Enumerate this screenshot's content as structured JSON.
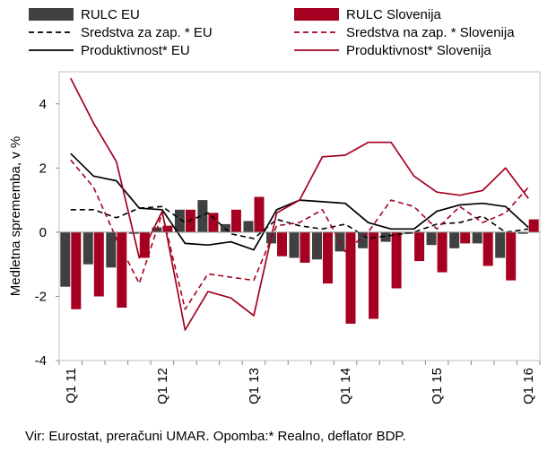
{
  "chart_data": {
    "type": "bar+line",
    "ylabel": "Medletna sprememba, v %",
    "ylim": [
      -4,
      5
    ],
    "yticks": [
      4,
      2,
      0,
      -2,
      -4
    ],
    "grid": false,
    "legend_position": "top",
    "quarters": [
      "Q1 11",
      "Q2 11",
      "Q3 11",
      "Q4 11",
      "Q1 12",
      "Q2 12",
      "Q3 12",
      "Q4 12",
      "Q1 13",
      "Q2 13",
      "Q3 13",
      "Q4 13",
      "Q1 14",
      "Q2 14",
      "Q3 14",
      "Q4 14",
      "Q1 15",
      "Q2 15",
      "Q3 15",
      "Q4 15",
      "Q1 16"
    ],
    "xtick_labels": [
      {
        "label": "Q1 11",
        "index": 0
      },
      {
        "label": "Q1 12",
        "index": 4
      },
      {
        "label": "Q1 13",
        "index": 8
      },
      {
        "label": "Q1 14",
        "index": 12
      },
      {
        "label": "Q1 15",
        "index": 16
      },
      {
        "label": "Q1 16",
        "index": 20
      }
    ],
    "series": [
      {
        "name": "RULC EU",
        "kind": "bar",
        "color": "#404040",
        "values": [
          -1.7,
          -1.0,
          -1.1,
          -0.05,
          0.15,
          0.7,
          1.0,
          0.25,
          0.35,
          -0.35,
          -0.8,
          -0.85,
          -0.6,
          -0.5,
          -0.3,
          -0.05,
          -0.4,
          -0.5,
          -0.35,
          -0.8,
          -0.05
        ]
      },
      {
        "name": "RULC Slovenija",
        "kind": "bar",
        "color": "#a50021",
        "values": [
          -2.4,
          -2.0,
          -2.35,
          -0.8,
          0.2,
          0.7,
          0.6,
          0.7,
          1.1,
          -0.75,
          -0.95,
          -1.6,
          -2.85,
          -2.7,
          -1.75,
          -0.9,
          -1.25,
          -0.35,
          -1.05,
          -1.5,
          0.4
        ]
      },
      {
        "name": "Sredstva za zap. * EU",
        "kind": "line",
        "style": "dashed",
        "color": "#000000",
        "values": [
          0.7,
          0.7,
          0.45,
          0.75,
          0.8,
          0.3,
          0.6,
          -0.05,
          -0.2,
          0.4,
          0.2,
          0.1,
          0.25,
          -0.2,
          -0.1,
          0.0,
          0.25,
          0.3,
          0.5,
          0.0,
          0.1
        ]
      },
      {
        "name": "Sredstva na zap. * Slovenija",
        "kind": "line",
        "style": "dashed",
        "color": "#a50021",
        "values": [
          2.25,
          1.4,
          -0.2,
          -1.6,
          0.6,
          -2.4,
          -1.3,
          -1.4,
          -1.5,
          0.2,
          0.3,
          0.7,
          -0.6,
          0.0,
          1.0,
          0.8,
          0.1,
          0.8,
          0.3,
          0.6,
          1.4
        ]
      },
      {
        "name": "Produktivnost*  EU",
        "kind": "line",
        "style": "solid",
        "color": "#000000",
        "values": [
          2.45,
          1.75,
          1.6,
          0.75,
          0.7,
          -0.35,
          -0.4,
          -0.3,
          -0.55,
          0.7,
          1.0,
          0.95,
          0.9,
          0.3,
          0.1,
          0.1,
          0.65,
          0.85,
          0.9,
          0.8,
          0.15
        ]
      },
      {
        "name": "Produktivnost* Slovenija",
        "kind": "line",
        "style": "solid",
        "color": "#a50021",
        "values": [
          4.8,
          3.4,
          2.2,
          -0.8,
          0.65,
          -3.05,
          -1.85,
          -2.05,
          -2.6,
          0.6,
          1.0,
          2.35,
          2.4,
          2.8,
          2.8,
          1.75,
          1.25,
          1.15,
          1.3,
          2.0,
          1.05
        ]
      }
    ]
  },
  "footer": {
    "source_text": "Vir: Eurostat, preračuni UMAR. Opomba:* Realno, deflator BDP."
  }
}
